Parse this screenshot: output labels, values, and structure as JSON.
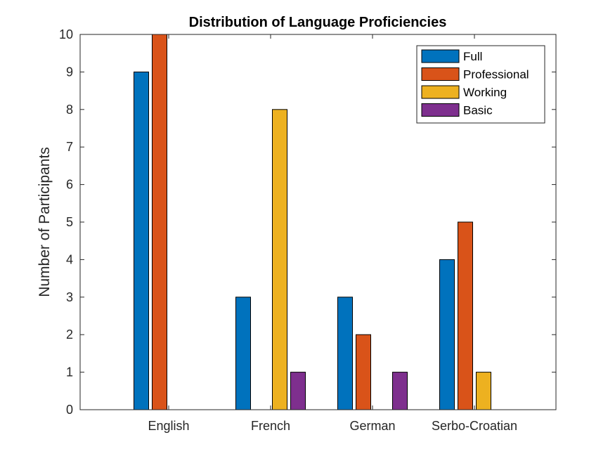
{
  "chart_data": {
    "type": "bar",
    "title": "Distribution of Language Proficiencies",
    "xlabel": "",
    "ylabel": "Number of Participants",
    "categories": [
      "English",
      "French",
      "German",
      "Serbo-Croatian"
    ],
    "series": [
      {
        "name": "Full",
        "color": "#0072BD",
        "values": [
          9,
          3,
          3,
          4
        ]
      },
      {
        "name": "Professional",
        "color": "#D95319",
        "values": [
          10,
          0,
          2,
          5
        ]
      },
      {
        "name": "Working",
        "color": "#EDB120",
        "values": [
          0,
          8,
          0,
          1
        ]
      },
      {
        "name": "Basic",
        "color": "#7E2F8E",
        "values": [
          0,
          1,
          1,
          0
        ]
      }
    ],
    "ylim": [
      0,
      10
    ],
    "yticks": [
      "0",
      "1",
      "2",
      "3",
      "4",
      "5",
      "6",
      "7",
      "8",
      "9",
      "10"
    ],
    "grid": false,
    "legend_position": "top-right"
  }
}
